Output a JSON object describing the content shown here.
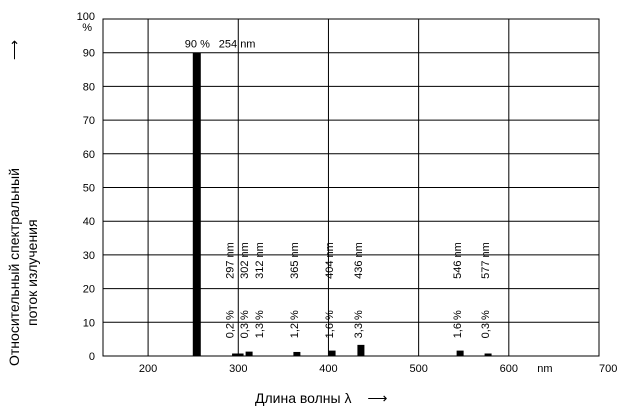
{
  "chart_data": {
    "type": "bar",
    "xlabel": "Длина волны λ",
    "xlabel_arrow": "⟶",
    "ylabel_lines": [
      "Относительный спектральный",
      "поток излучения"
    ],
    "ylabel_arrow": "⟶",
    "y_unit": "%",
    "xlim": [
      150,
      700
    ],
    "ylim": [
      0,
      100
    ],
    "x_ticks": [
      "200",
      "300",
      "400",
      "500",
      "600",
      "700"
    ],
    "x_unit": "nm",
    "y_ticks": [
      "0",
      "10",
      "20",
      "30",
      "40",
      "50",
      "60",
      "70",
      "80",
      "90",
      "100"
    ],
    "grid": true,
    "series": [
      {
        "points": [
          {
            "x": 254,
            "y": 90,
            "label_pct": "90 %",
            "label_nm": "254 nm"
          },
          {
            "x": 297,
            "y": 0.2,
            "label_pct": "0,2 %",
            "label_nm": "297 nm"
          },
          {
            "x": 302,
            "y": 0.3,
            "label_pct": "0,3 %",
            "label_nm": "302 nm"
          },
          {
            "x": 312,
            "y": 1.3,
            "label_pct": "1,3 %",
            "label_nm": "312 nm"
          },
          {
            "x": 365,
            "y": 1.2,
            "label_pct": "1,2 %",
            "label_nm": "365 nm"
          },
          {
            "x": 404,
            "y": 1.6,
            "label_pct": "1,6 %",
            "label_nm": "404 nm"
          },
          {
            "x": 436,
            "y": 3.3,
            "label_pct": "3,3 %",
            "label_nm": "436 nm"
          },
          {
            "x": 546,
            "y": 1.6,
            "label_pct": "1,6 %",
            "label_nm": "546 nm"
          },
          {
            "x": 577,
            "y": 0.3,
            "label_pct": "0,3 %",
            "label_nm": "577 nm"
          }
        ]
      }
    ]
  }
}
